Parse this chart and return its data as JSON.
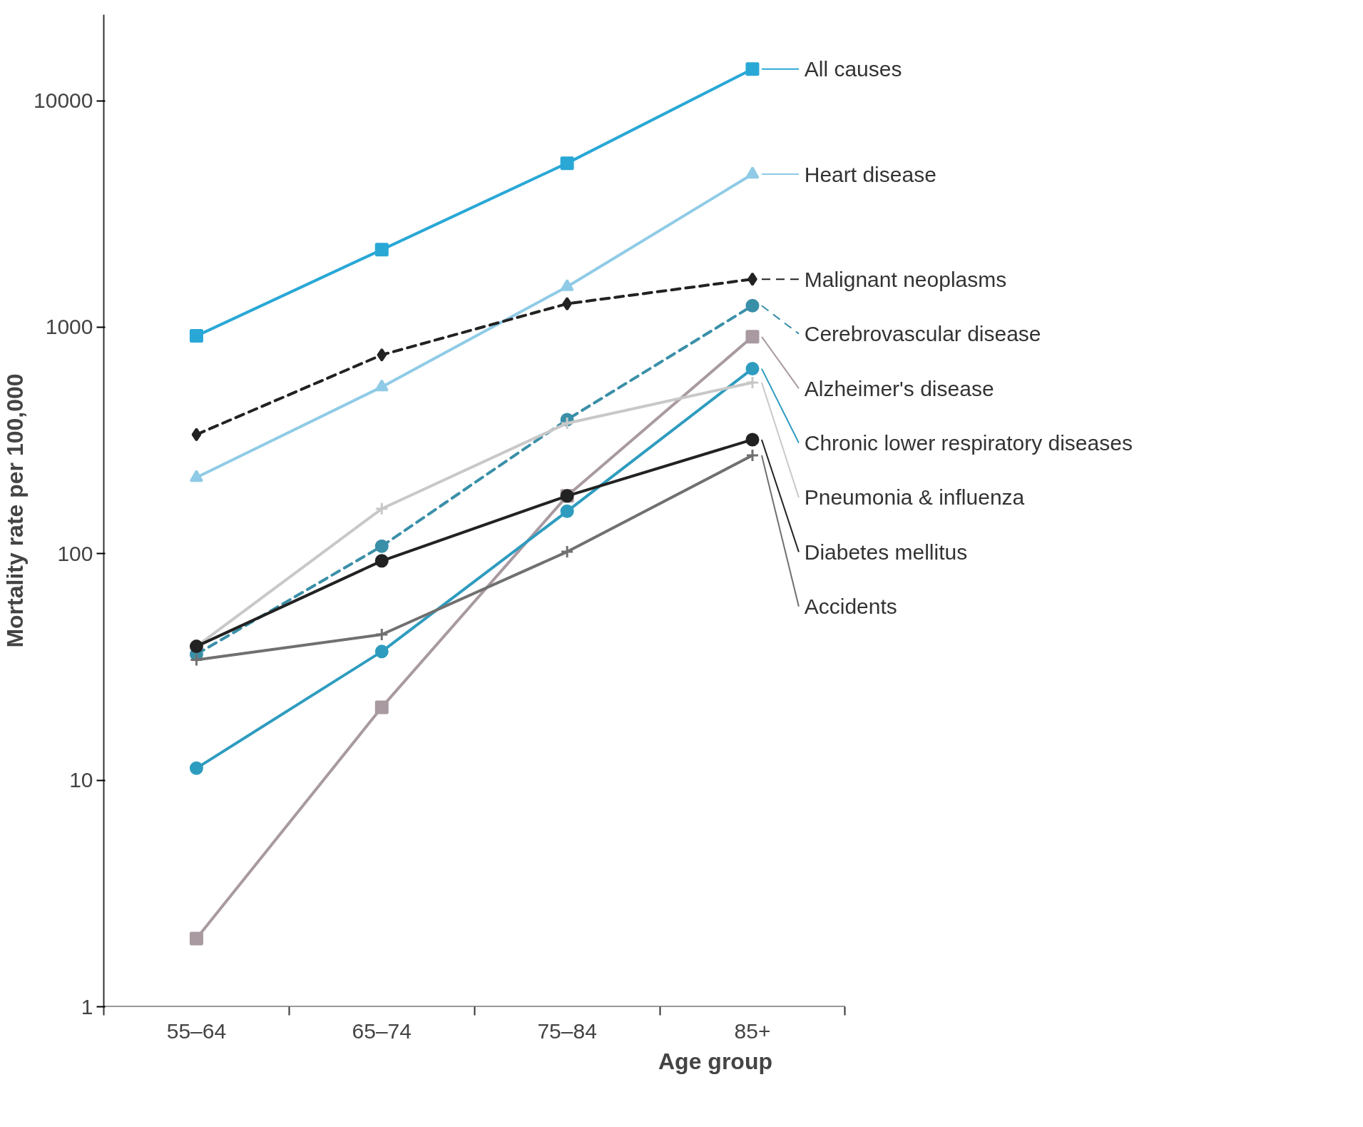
{
  "chart_data": {
    "type": "line",
    "xlabel": "Age group",
    "ylabel": "Mortality rate per 100,000",
    "categories": [
      "55–64",
      "65–74",
      "75–84",
      "85+"
    ],
    "log": true,
    "ylim": [
      1,
      24000
    ],
    "yticks": [
      1,
      10,
      100,
      1000,
      10000
    ],
    "grid": false,
    "legend": "right",
    "series": [
      {
        "name": "All causes",
        "color": "#29a8d6",
        "marker": "square",
        "line_style": "solid",
        "values": [
          916,
          2200,
          5300,
          13800
        ]
      },
      {
        "name": "Heart disease",
        "color": "#8fcbe6",
        "marker": "triangle",
        "line_style": "solid",
        "values": [
          217,
          545,
          1510,
          4740
        ]
      },
      {
        "name": "Malignant neoplasms",
        "color": "#222222",
        "marker": "diamond",
        "line_style": "dashed",
        "values": [
          336,
          755,
          1270,
          1630
        ]
      },
      {
        "name": "Cerebrovascular disease",
        "color": "#3a8fa8",
        "marker": "circle",
        "line_style": "dashed",
        "values": [
          36,
          108,
          391,
          1245
        ]
      },
      {
        "name": "Alzheimer's disease",
        "color": "#a89aa0",
        "marker": "square",
        "line_style": "solid",
        "values": [
          2.0,
          21,
          180,
          908
        ]
      },
      {
        "name": "Chronic lower respiratory diseases",
        "color": "#2e9cbf",
        "marker": "circle",
        "line_style": "solid",
        "values": [
          11.3,
          37,
          154,
          656
        ]
      },
      {
        "name": "Pneumonia & influenza",
        "color": "#c8c8c8",
        "marker": "cross",
        "line_style": "solid",
        "values": [
          39,
          158,
          377,
          570
        ]
      },
      {
        "name": "Diabetes mellitus",
        "color": "#222222",
        "marker": "circle",
        "line_style": "solid",
        "values": [
          39,
          93,
          180,
          319
        ]
      },
      {
        "name": "Accidents",
        "color": "#707070",
        "marker": "cross",
        "line_style": "solid",
        "values": [
          34,
          44,
          102,
          272
        ]
      }
    ]
  }
}
